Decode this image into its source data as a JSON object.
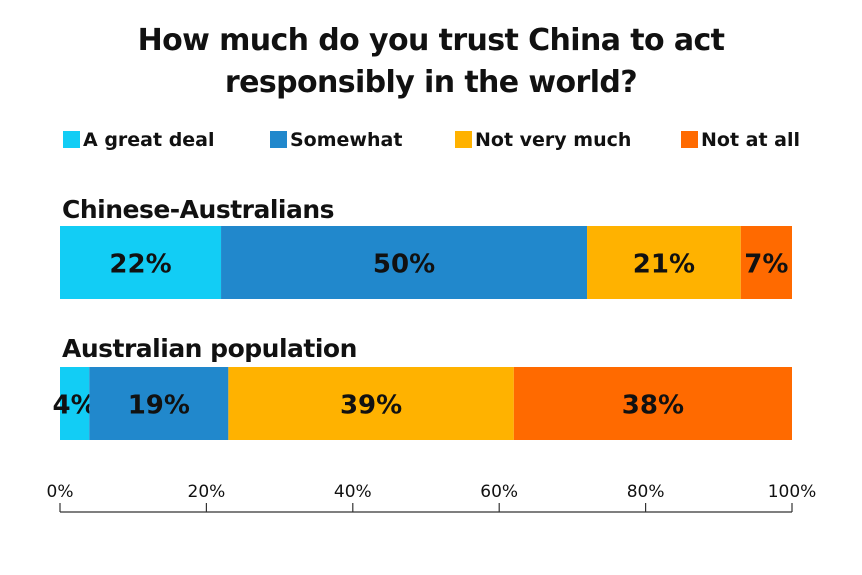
{
  "chart_data": {
    "type": "bar",
    "orientation": "horizontal",
    "stacked": true,
    "title_lines": [
      "How much do you trust China to act",
      "responsibly in the world?"
    ],
    "series": [
      {
        "name": "A great deal",
        "color": "#12CDF5",
        "values": [
          22,
          4
        ]
      },
      {
        "name": "Somewhat",
        "color": "#2188CC",
        "values": [
          50,
          19
        ]
      },
      {
        "name": "Not very much",
        "color": "#FFB200",
        "values": [
          21,
          39
        ]
      },
      {
        "name": "Not at all",
        "color": "#FF6A00",
        "values": [
          7,
          38
        ]
      }
    ],
    "categories": [
      "Chinese-Australians",
      "Australian population"
    ],
    "value_labels": [
      [
        "22%",
        "50%",
        "21%",
        "7%"
      ],
      [
        "4%",
        "19%",
        "39%",
        "38%"
      ]
    ],
    "xlim": [
      0,
      100
    ],
    "x_ticks": [
      "0%",
      "20%",
      "40%",
      "60%",
      "80%",
      "100%"
    ],
    "legend_position": "top",
    "grid": false
  }
}
